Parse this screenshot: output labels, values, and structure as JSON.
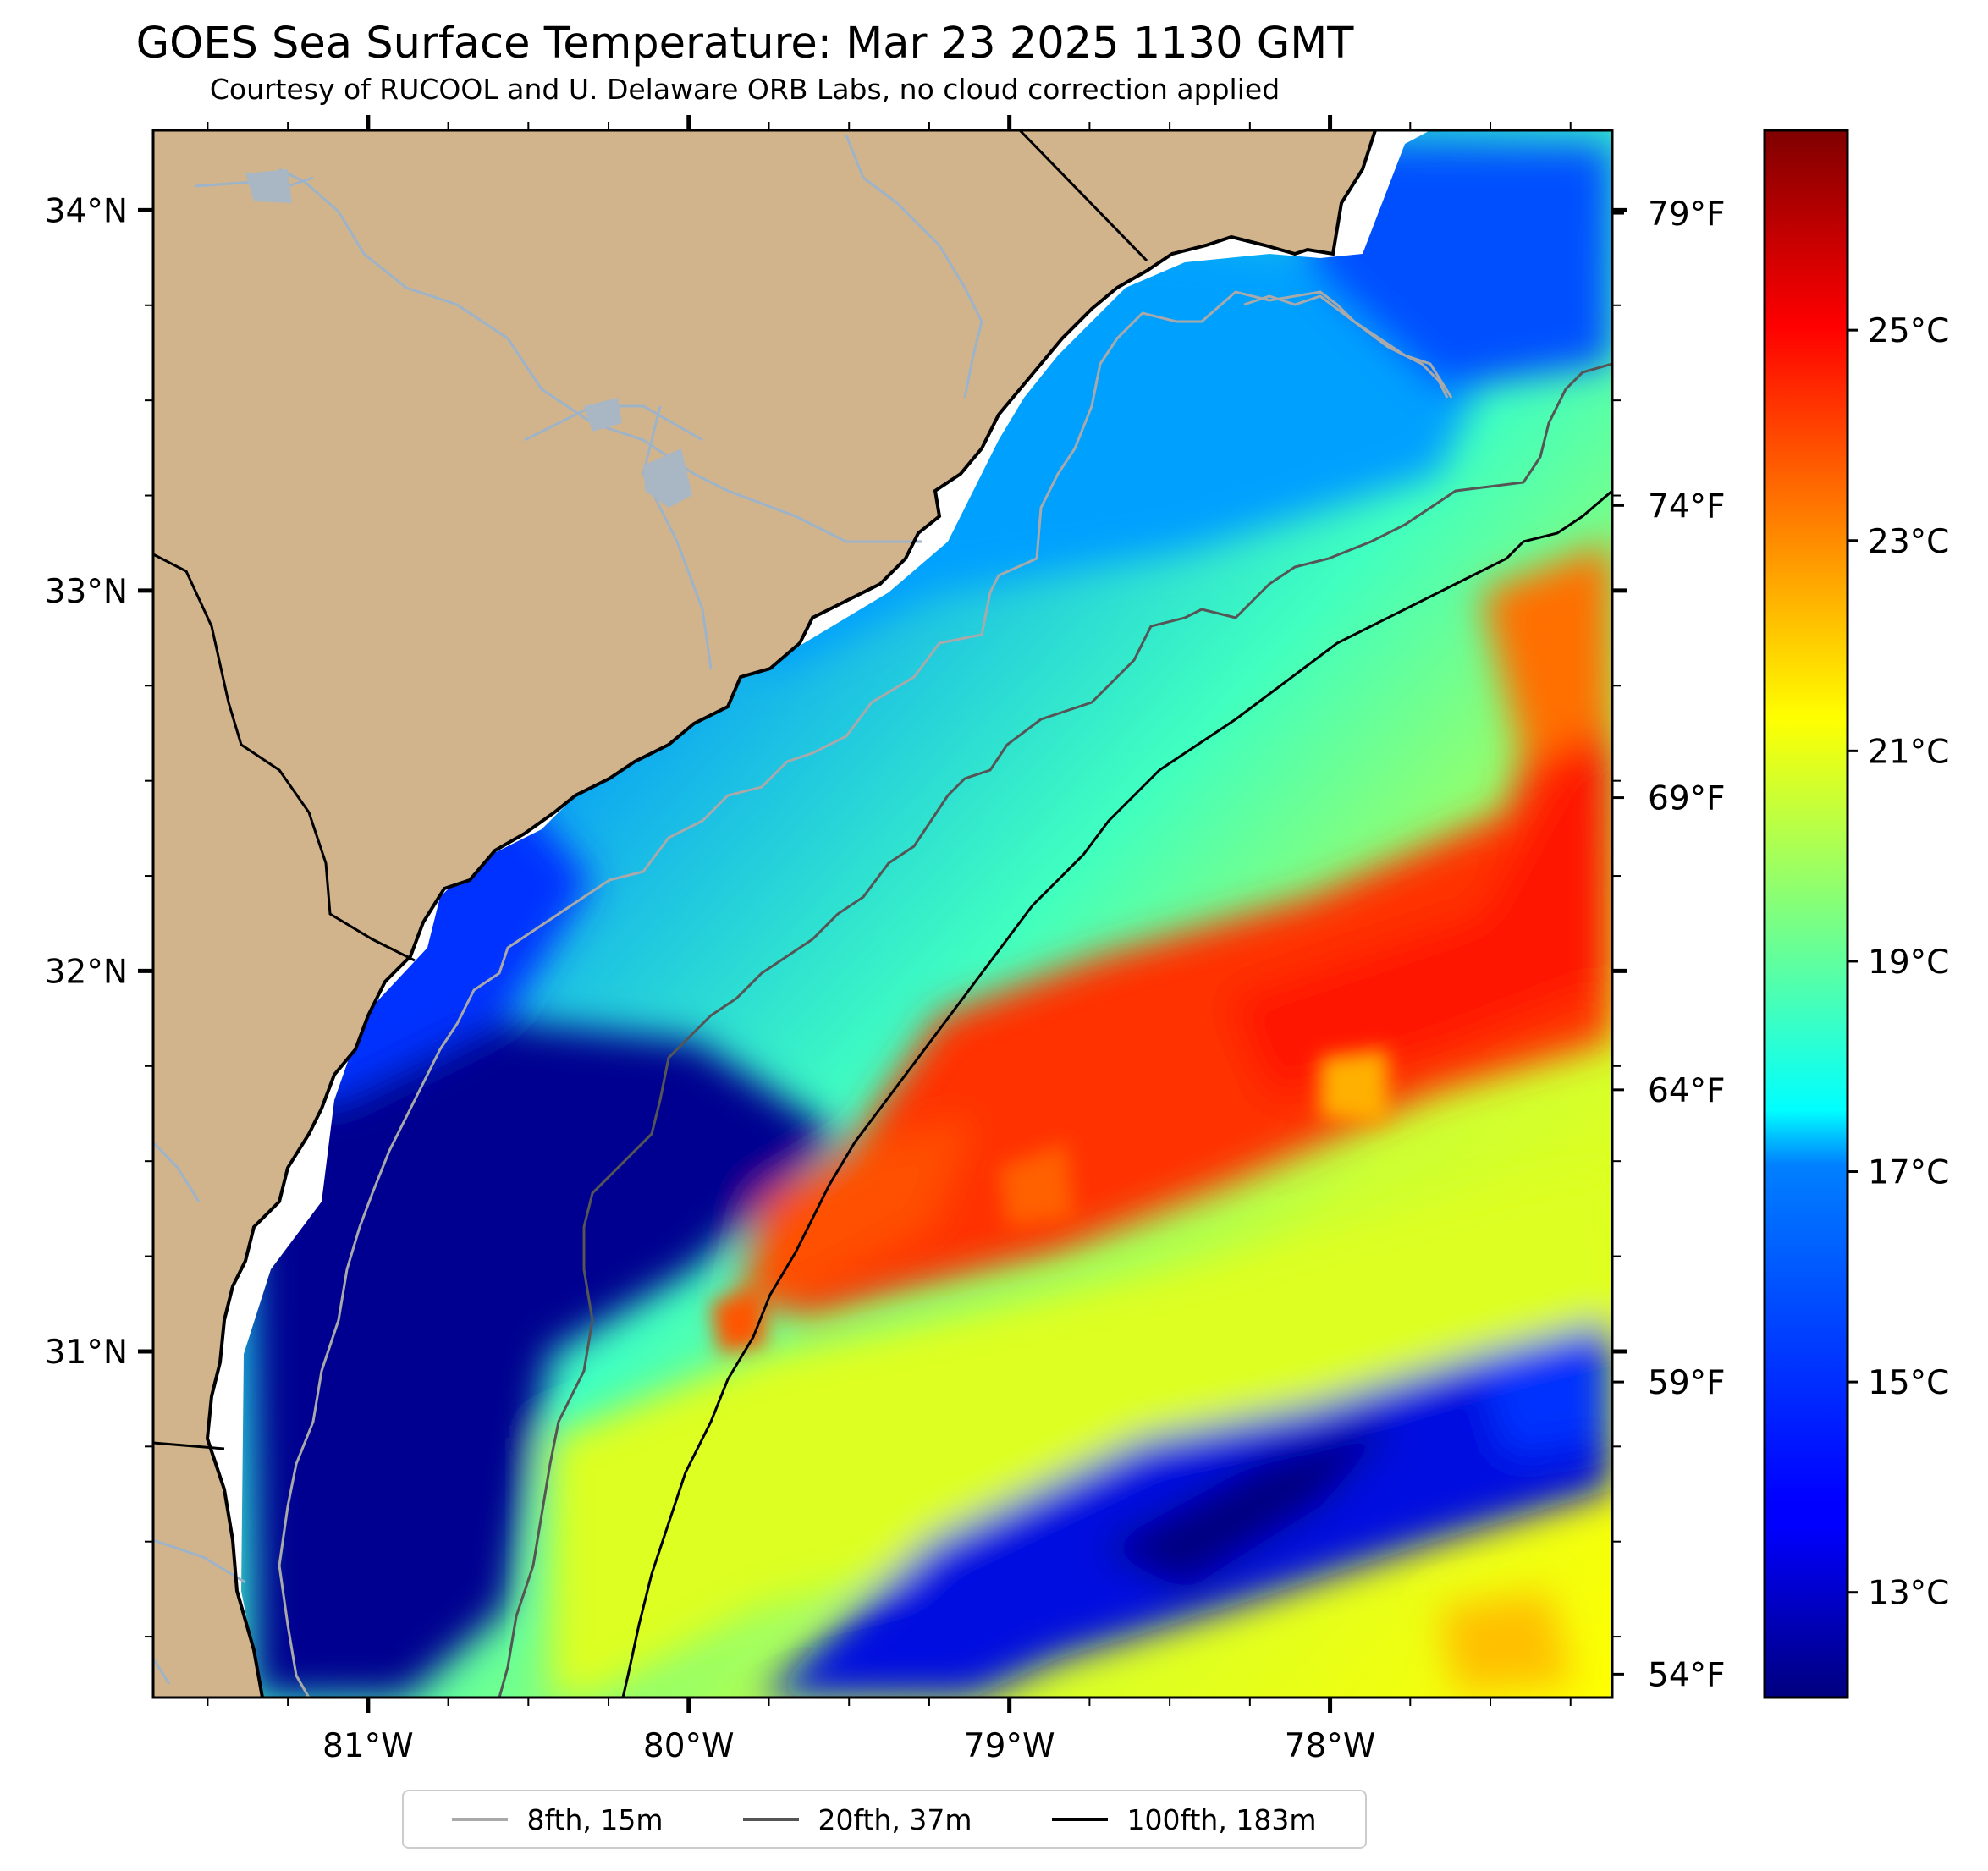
{
  "title": "GOES Sea Surface Temperature: Mar 23 2025 1130 GMT",
  "subtitle": "Courtesy of RUCOOL and U. Delaware ORB Labs, no cloud correction applied",
  "map": {
    "lon_range": [
      -81.67,
      -77.12
    ],
    "lat_range": [
      30.09,
      34.21
    ],
    "lon_ticks": [
      {
        "value": -81,
        "label": "81°W"
      },
      {
        "value": -80,
        "label": "80°W"
      },
      {
        "value": -79,
        "label": "79°W"
      },
      {
        "value": -78,
        "label": "78°W"
      }
    ],
    "lat_ticks": [
      {
        "value": 34,
        "label": "34°N"
      },
      {
        "value": 33,
        "label": "33°N"
      },
      {
        "value": 32,
        "label": "32°N"
      },
      {
        "value": 31,
        "label": "31°N"
      }
    ],
    "land_color": "#d2b48c",
    "river_color": "#9db3c9",
    "sea_gap_color": "#ffffff"
  },
  "colorbar": {
    "colormap": "jet",
    "range_c": [
      12.0,
      26.9
    ],
    "celsius_ticks": [
      {
        "value": 13,
        "label": "13°C"
      },
      {
        "value": 15,
        "label": "15°C"
      },
      {
        "value": 17,
        "label": "17°C"
      },
      {
        "value": 19,
        "label": "19°C"
      },
      {
        "value": 21,
        "label": "21°C"
      },
      {
        "value": 23,
        "label": "23°C"
      },
      {
        "value": 25,
        "label": "25°C"
      }
    ],
    "fahrenheit_ticks": [
      {
        "value": 54,
        "label": "54°F"
      },
      {
        "value": 59,
        "label": "59°F"
      },
      {
        "value": 64,
        "label": "64°F"
      },
      {
        "value": 69,
        "label": "69°F"
      },
      {
        "value": 74,
        "label": "74°F"
      },
      {
        "value": 79,
        "label": "79°F"
      }
    ]
  },
  "legend": {
    "entries": [
      {
        "label": "8fth, 15m",
        "color": "#a9a9a9"
      },
      {
        "label": "20fth, 37m",
        "color": "#555555"
      },
      {
        "label": "100fth, 183m",
        "color": "#000000"
      }
    ]
  }
}
